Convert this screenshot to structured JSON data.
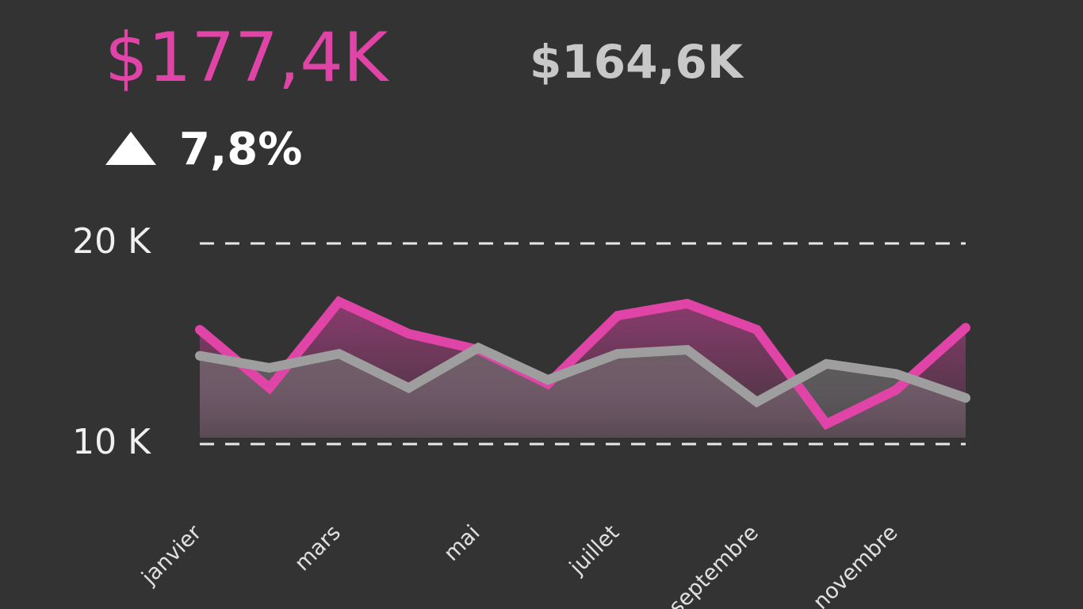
{
  "kpi": {
    "value": "$177,4K",
    "comparison": "$164,6K",
    "change": "7,8%"
  },
  "chart_data": {
    "type": "line",
    "categories": [
      "janvier",
      null,
      "mars",
      null,
      "mai",
      null,
      "juillet",
      null,
      "septembre",
      null,
      "novembre",
      null
    ],
    "series": [
      {
        "color": "#e044a7",
        "values": [
          15700,
          12800,
          17100,
          15500,
          14700,
          13000,
          16400,
          17000,
          15700,
          11000,
          12700,
          15800
        ]
      },
      {
        "color": "#9e9e9e",
        "values": [
          14400,
          13800,
          14500,
          12800,
          14800,
          13200,
          14500,
          14700,
          12100,
          14000,
          13500,
          12300
        ]
      }
    ],
    "ylim": [
      10000,
      20000
    ],
    "yticks": [
      {
        "value": 10000,
        "label": "10 K"
      },
      {
        "value": 20000,
        "label": "20 K"
      }
    ],
    "grid": true,
    "area": true
  }
}
